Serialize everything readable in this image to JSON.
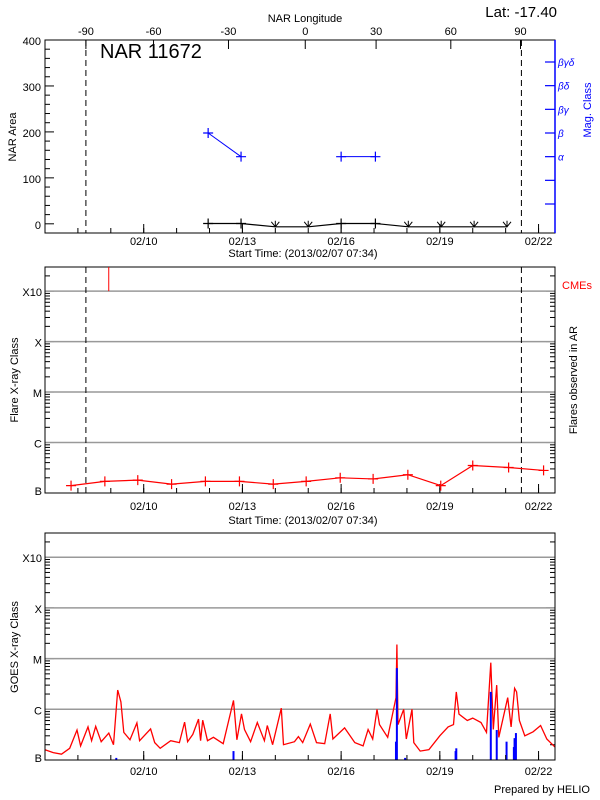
{
  "colors": {
    "area": "#000000",
    "mag": "#0000ff",
    "flare": "#ff0000",
    "cme": "#ff0000",
    "goes_long": "#ff0000",
    "goes_short": "#0000ff",
    "grid": "#999999"
  },
  "header": {
    "lat_label": "Lat: -17.40",
    "region_title": "NAR 11672",
    "prepared_by": "Prepared by HELIO"
  },
  "chart_data": [
    {
      "type": "line",
      "panel": "nar",
      "title": "NAR 11672",
      "xlabel": "Start Time: (2013/02/07 07:34)",
      "ylabel": "NAR Area",
      "ylabel_right": "Mag. Class",
      "xlabel_top": "NAR Longitude",
      "xlim": [
        "2013-02-07 00:00",
        "2013-02-22 12:00"
      ],
      "ylim": [
        -20,
        400
      ],
      "yticks": [
        "0",
        "100",
        "200",
        "300",
        "400"
      ],
      "xtick_labels": [
        {
          "date": "2013-02-10 00:00",
          "label": "02/10"
        },
        {
          "date": "2013-02-13 00:00",
          "label": "02/13"
        },
        {
          "date": "2013-02-16 00:00",
          "label": "02/16"
        },
        {
          "date": "2013-02-19 00:00",
          "label": "02/19"
        },
        {
          "date": "2013-02-22 00:00",
          "label": "02/22"
        }
      ],
      "longitude_ticks": [
        {
          "date": "2013-02-08 05:50",
          "label": "-90"
        },
        {
          "date": "2013-02-10 07:10",
          "label": "-60"
        },
        {
          "date": "2013-02-12 13:50",
          "label": "-30"
        },
        {
          "date": "2013-02-14 21:50",
          "label": "0"
        },
        {
          "date": "2013-02-17 01:30",
          "label": "30"
        },
        {
          "date": "2013-02-19 08:00",
          "label": "60"
        },
        {
          "date": "2013-02-21 10:50",
          "label": "90"
        }
      ],
      "limb_lines": [
        "2013-02-08 05:50",
        "2013-02-21 11:30"
      ],
      "mag_classes": [
        "",
        "",
        "α",
        "β",
        "βγ",
        "βδ",
        "βγδ"
      ],
      "area_series": [
        [
          "2013-02-11 23:00",
          5
        ],
        [
          "2013-02-12 23:00",
          5
        ],
        [
          "2013-02-14 00:00",
          0
        ],
        [
          "2013-02-15 00:00",
          0
        ],
        [
          "2013-02-16 00:00",
          5
        ],
        [
          "2013-02-17 01:00",
          5
        ],
        [
          "2013-02-18 01:00",
          0
        ],
        [
          "2013-02-19 01:00",
          0
        ],
        [
          "2013-02-20 01:00",
          0
        ],
        [
          "2013-02-21 01:00",
          0
        ]
      ],
      "mag_series": [
        [
          [
            "2013-02-11 23:00",
            "β"
          ],
          [
            "2013-02-12 23:00",
            "α"
          ]
        ],
        [
          [
            "2013-02-16 00:00",
            "α"
          ],
          [
            "2013-02-17 01:00",
            "α"
          ]
        ]
      ]
    },
    {
      "type": "line",
      "panel": "flares",
      "xlabel": "Start Time: (2013/02/07 07:34)",
      "ylabel": "Flare X-ray Class",
      "ylabel_right": "Flares observed in AR",
      "cme_label": "CMEs",
      "yscale": "log",
      "xlim": [
        "2013-02-07 00:00",
        "2013-02-22 12:00"
      ],
      "ylim": [
        1e-07,
        0.003
      ],
      "grid": true,
      "class_ticks": [
        [
          "B",
          1e-07
        ],
        [
          "C",
          1e-06
        ],
        [
          "M",
          1e-05
        ],
        [
          "X",
          0.0001
        ],
        [
          "X10",
          0.001
        ]
      ],
      "limb_lines": [
        "2013-02-08 05:50",
        "2013-02-21 11:30"
      ],
      "cmes": [
        "2013-02-08 22:30"
      ],
      "flare_series": [
        [
          "2013-02-07 19:00",
          1.4e-07
        ],
        [
          "2013-02-08 19:40",
          1.7e-07
        ],
        [
          "2013-02-09 19:40",
          1.8e-07
        ],
        [
          "2013-02-10 20:20",
          1.5e-07
        ],
        [
          "2013-02-11 21:00",
          1.7e-07
        ],
        [
          "2013-02-12 21:50",
          1.7e-07
        ],
        [
          "2013-02-13 22:30",
          1.5e-07
        ],
        [
          "2013-02-14 22:30",
          1.7e-07
        ],
        [
          "2013-02-15 23:20",
          2e-07
        ],
        [
          "2013-02-16 23:20",
          1.9e-07
        ],
        [
          "2013-02-18 00:40",
          2.3e-07
        ],
        [
          "2013-02-19 00:40",
          1.4e-07
        ],
        [
          "2013-02-20 00:00",
          3.5e-07
        ],
        [
          "2013-02-21 02:10",
          3.2e-07
        ],
        [
          "2013-02-22 03:40",
          2.8e-07
        ]
      ]
    },
    {
      "type": "line",
      "panel": "goes",
      "ylabel": "GOES X-ray Class",
      "yscale": "log",
      "xlim": [
        "2013-02-07 00:00",
        "2013-02-22 12:00"
      ],
      "ylim": [
        1e-07,
        0.003
      ],
      "grid": true,
      "class_ticks": [
        [
          "B",
          1e-07
        ],
        [
          "C",
          1e-06
        ],
        [
          "M",
          1e-05
        ],
        [
          "X",
          0.0001
        ],
        [
          "X10",
          0.001
        ]
      ],
      "long_channel": [
        [
          "2013-02-07 00:00",
          1.6e-07
        ],
        [
          "2013-02-07 06:00",
          1.4e-07
        ],
        [
          "2013-02-07 12:00",
          1.3e-07
        ],
        [
          "2013-02-07 18:00",
          1.7e-07
        ],
        [
          "2013-02-07 23:20",
          3.9e-07
        ],
        [
          "2013-02-08 02:00",
          1.9e-07
        ],
        [
          "2013-02-08 07:20",
          4.5e-07
        ],
        [
          "2013-02-08 10:00",
          2.4e-07
        ],
        [
          "2013-02-08 13:00",
          4.6e-07
        ],
        [
          "2013-02-08 17:00",
          2.3e-07
        ],
        [
          "2013-02-08 22:30",
          3.4e-07
        ],
        [
          "2013-02-09 02:00",
          2e-07
        ],
        [
          "2013-02-09 05:00",
          2.4e-06
        ],
        [
          "2013-02-09 07:20",
          1.4e-06
        ],
        [
          "2013-02-09 09:30",
          3.5e-07
        ],
        [
          "2013-02-09 14:00",
          2.5e-07
        ],
        [
          "2013-02-09 19:00",
          5.4e-07
        ],
        [
          "2013-02-09 21:00",
          2.4e-07
        ],
        [
          "2013-02-10 05:00",
          4.1e-07
        ],
        [
          "2013-02-10 08:00",
          2.2e-07
        ],
        [
          "2013-02-10 12:00",
          1.7e-07
        ],
        [
          "2013-02-10 19:40",
          2.4e-07
        ],
        [
          "2013-02-11 02:00",
          2.2e-07
        ],
        [
          "2013-02-11 05:50",
          5.6e-07
        ],
        [
          "2013-02-11 08:00",
          2.3e-07
        ],
        [
          "2013-02-11 11:50",
          3.2e-07
        ],
        [
          "2013-02-11 16:00",
          6.4e-07
        ],
        [
          "2013-02-11 17:30",
          2.4e-07
        ],
        [
          "2013-02-11 19:00",
          6.1e-07
        ],
        [
          "2013-02-11 22:30",
          2.4e-07
        ],
        [
          "2013-02-12 02:50",
          2.8e-07
        ],
        [
          "2013-02-12 10:00",
          2.1e-07
        ],
        [
          "2013-02-12 17:30",
          1.5e-06
        ],
        [
          "2013-02-12 20:00",
          2.5e-07
        ],
        [
          "2013-02-12 23:20",
          8.1e-07
        ],
        [
          "2013-02-13 01:30",
          4e-07
        ],
        [
          "2013-02-13 06:00",
          2.3e-07
        ],
        [
          "2013-02-13 10:50",
          5.5e-07
        ],
        [
          "2013-02-13 16:00",
          2.4e-07
        ],
        [
          "2013-02-13 18:10",
          4.8e-07
        ],
        [
          "2013-02-13 22:00",
          2e-07
        ],
        [
          "2013-02-14 04:20",
          1.05e-06
        ],
        [
          "2013-02-14 06:00",
          2e-07
        ],
        [
          "2013-02-14 14:00",
          2.3e-07
        ],
        [
          "2013-02-14 16:50",
          2.9e-07
        ],
        [
          "2013-02-14 20:00",
          2.2e-07
        ],
        [
          "2013-02-15 01:30",
          5.1e-07
        ],
        [
          "2013-02-15 06:00",
          2.2e-07
        ],
        [
          "2013-02-15 12:00",
          2.1e-07
        ],
        [
          "2013-02-15 16:00",
          8.1e-07
        ],
        [
          "2013-02-15 18:00",
          2.6e-07
        ],
        [
          "2013-02-16 02:30",
          4.3e-07
        ],
        [
          "2013-02-16 10:00",
          2.2e-07
        ],
        [
          "2013-02-16 16:00",
          1.9e-07
        ],
        [
          "2013-02-16 19:40",
          4e-07
        ],
        [
          "2013-02-16 23:00",
          2.6e-07
        ],
        [
          "2013-02-17 02:10",
          1e-06
        ],
        [
          "2013-02-17 04:00",
          5e-07
        ],
        [
          "2013-02-17 10:00",
          2.8e-07
        ],
        [
          "2013-02-17 16:00",
          1.7e-06
        ],
        [
          "2013-02-17 16:40",
          1.9e-05
        ],
        [
          "2013-02-17 17:30",
          5e-07
        ],
        [
          "2013-02-17 21:40",
          1e-06
        ],
        [
          "2013-02-17 23:30",
          2.6e-07
        ],
        [
          "2013-02-18 03:40",
          1e-06
        ],
        [
          "2013-02-18 05:00",
          2.2e-07
        ],
        [
          "2013-02-18 09:40",
          1.5e-07
        ],
        [
          "2013-02-18 16:00",
          1.6e-07
        ],
        [
          "2013-02-19 00:00",
          3e-07
        ],
        [
          "2013-02-19 06:00",
          4.5e-07
        ],
        [
          "2013-02-19 10:00",
          5e-07
        ],
        [
          "2013-02-19 12:00",
          2.2e-06
        ],
        [
          "2013-02-19 14:00",
          8e-07
        ],
        [
          "2013-02-19 20:00",
          6e-07
        ],
        [
          "2013-02-20 00:00",
          6.7e-07
        ],
        [
          "2013-02-20 06:00",
          5.5e-07
        ],
        [
          "2013-02-20 10:00",
          3.5e-07
        ],
        [
          "2013-02-20 13:10",
          8.3e-06
        ],
        [
          "2013-02-20 15:00",
          4e-07
        ],
        [
          "2013-02-20 17:30",
          3e-06
        ],
        [
          "2013-02-20 19:00",
          2.8e-07
        ],
        [
          "2013-02-21 01:30",
          1.7e-06
        ],
        [
          "2013-02-21 04:00",
          4.5e-07
        ],
        [
          "2013-02-21 06:30",
          2.6e-06
        ],
        [
          "2013-02-21 08:00",
          2.2e-06
        ],
        [
          "2013-02-21 10:00",
          6e-07
        ],
        [
          "2013-02-21 14:00",
          3e-07
        ],
        [
          "2013-02-21 20:00",
          3.6e-07
        ],
        [
          "2013-02-22 01:30",
          4.8e-07
        ],
        [
          "2013-02-22 06:00",
          2.6e-07
        ],
        [
          "2013-02-22 12:00",
          1.8e-07
        ]
      ],
      "short_channel": [
        [
          "2013-02-09 04:00",
          1.1e-07
        ],
        [
          "2013-02-12 17:30",
          1.5e-07
        ],
        [
          "2013-02-17 16:00",
          2.3e-07
        ],
        [
          "2013-02-17 16:40",
          6.5e-06
        ],
        [
          "2013-02-17 22:40",
          1.1e-07
        ],
        [
          "2013-02-19 11:30",
          1.5e-07
        ],
        [
          "2013-02-19 12:00",
          1.7e-07
        ],
        [
          "2013-02-20 13:10",
          2.2e-06
        ],
        [
          "2013-02-20 17:30",
          3.9e-07
        ],
        [
          "2013-02-21 00:40",
          2.3e-07
        ],
        [
          "2013-02-21 06:00",
          1.8e-07
        ],
        [
          "2013-02-21 06:30",
          2.7e-07
        ],
        [
          "2013-02-21 07:30",
          3.4e-07
        ]
      ]
    }
  ]
}
